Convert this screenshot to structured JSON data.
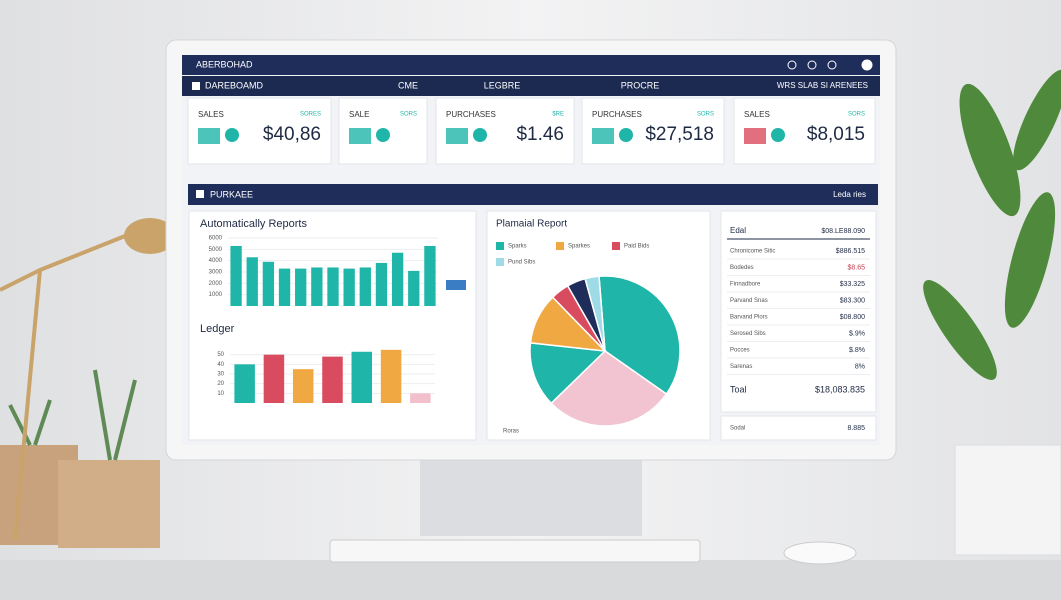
{
  "topbar": {
    "title": "ABERBOHAD"
  },
  "nav": {
    "brand": "DAREBOAMD",
    "items": [
      "CME",
      "LEGBRE",
      "PROCRE"
    ],
    "menu": "WRS SLAB SI ARENEES"
  },
  "kpis": [
    {
      "label": "SALES",
      "tag": "SORES",
      "value": "$40,86"
    },
    {
      "label": "SALE",
      "tag": "SORS"
    },
    {
      "label": "PURCHASES",
      "tag": "$RE",
      "value": "$1.46"
    },
    {
      "label": "PURCHASES",
      "tag": "SORS",
      "value": "$27,518"
    },
    {
      "label": "SALES",
      "tag": "SORS",
      "value": "$8,015"
    }
  ],
  "section": {
    "title": "PURKAEE",
    "menu": "Leda ries"
  },
  "bar_chart": {
    "type": "bar",
    "title": "Automatically Reports",
    "color": "#1fb5a8",
    "values": [
      5300,
      4300,
      3900,
      3300,
      3300,
      3400,
      3400,
      3300,
      3400,
      3800,
      4700,
      3100,
      5300
    ],
    "ylim": [
      0,
      6000
    ],
    "yticks": [
      1000,
      2000,
      3000,
      4000,
      5000,
      6000
    ]
  },
  "ledger_chart": {
    "type": "bar",
    "title": "Ledger",
    "values": [
      40,
      50,
      35,
      48,
      53,
      55,
      10
    ],
    "colors": [
      "#1fb5a8",
      "#d94b5e",
      "#f0a843",
      "#d94b5e",
      "#1fb5a8",
      "#f0a843",
      "#f2c0cc"
    ],
    "ylim": [
      0,
      60
    ],
    "yticks": [
      10,
      20,
      30,
      40,
      50
    ]
  },
  "pie_chart": {
    "type": "pie",
    "title": "Plamaial Report",
    "values": [
      36,
      28,
      14,
      11,
      4,
      4,
      3
    ],
    "colors": [
      "#1fb5a8",
      "#f2c4d2",
      "#1fb5a8",
      "#f0a843",
      "#d94b5e",
      "#1e2d5a",
      "#9fdbe6"
    ],
    "legend": [
      {
        "name": "Sparks",
        "color": "#1fb5a8"
      },
      {
        "name": "Sparkes",
        "color": "#f0a843"
      },
      {
        "name": "Paid Bids",
        "color": "#d94b5e"
      },
      {
        "name": "Pund Sibs",
        "color": "#9fdbe6"
      }
    ],
    "note": "Roras"
  },
  "table": {
    "header": [
      "Edal",
      "$08.LE88.090"
    ],
    "rows": [
      [
        "Chronicome Sitic",
        "$886.515"
      ],
      [
        "Bodedes",
        "$8.65"
      ],
      [
        "Finnadbore",
        "$33.325"
      ],
      [
        "Parvand Snas",
        "$83.300"
      ],
      [
        "Barvand Plors",
        "$08.800"
      ],
      [
        "Serosed Sibs",
        "$.9%"
      ],
      [
        "Pocces",
        "$.8%"
      ],
      [
        "Sarenas",
        "8%"
      ]
    ],
    "total": [
      "Toal",
      "$18,083.835"
    ],
    "footer": [
      "Sodal",
      "8.885"
    ]
  }
}
